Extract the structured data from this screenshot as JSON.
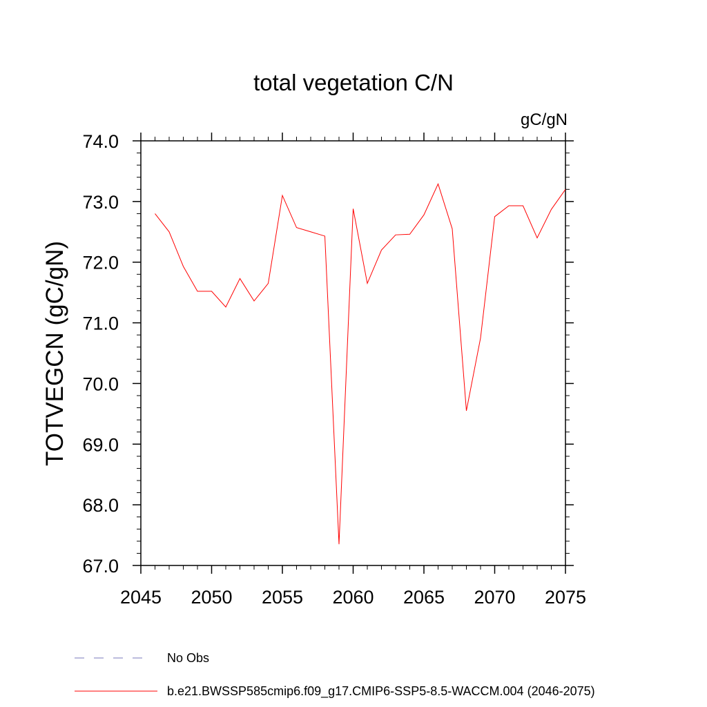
{
  "chart_data": {
    "type": "line",
    "title": "total vegetation C/N",
    "units_label": "gC/gN",
    "ylabel": "TOTVEGCN  (gC/gN)",
    "xlabel": "",
    "xlim": [
      2045,
      2075
    ],
    "ylim": [
      67.0,
      74.0
    ],
    "x_ticks": [
      2045,
      2050,
      2055,
      2060,
      2065,
      2070,
      2075
    ],
    "x_tick_labels": [
      "2045",
      "2050",
      "2055",
      "2060",
      "2065",
      "2070",
      "2075"
    ],
    "y_ticks": [
      67.0,
      68.0,
      69.0,
      70.0,
      71.0,
      72.0,
      73.0,
      74.0
    ],
    "y_tick_labels": [
      "67.0",
      "68.0",
      "69.0",
      "70.0",
      "71.0",
      "72.0",
      "73.0",
      "74.0"
    ],
    "grid": false,
    "legend_position": "bottom",
    "series": [
      {
        "name": "b.e21.BWSSP585cmip6.f09_g17.CMIP6-SSP5-8.5-WACCM.004 (2046-2075)",
        "color": "#ff0000",
        "x": [
          2046,
          2047,
          2048,
          2049,
          2050,
          2051,
          2052,
          2053,
          2054,
          2055,
          2056,
          2057,
          2058,
          2059,
          2060,
          2061,
          2062,
          2063,
          2064,
          2065,
          2066,
          2067,
          2068,
          2069,
          2070,
          2071,
          2072,
          2073,
          2074,
          2075
        ],
        "values": [
          72.8,
          72.5,
          71.93,
          71.52,
          71.52,
          71.26,
          71.73,
          71.36,
          71.65,
          73.1,
          72.57,
          72.5,
          72.43,
          67.35,
          72.88,
          71.65,
          72.2,
          72.45,
          72.46,
          72.78,
          73.29,
          72.55,
          69.55,
          70.75,
          72.75,
          72.93,
          72.93,
          72.4,
          72.87,
          73.2
        ]
      }
    ],
    "legend": [
      {
        "label": "No Obs",
        "color": "#7777bb",
        "style": "dashed"
      },
      {
        "label": "b.e21.BWSSP585cmip6.f09_g17.CMIP6-SSP5-8.5-WACCM.004 (2046-2075)",
        "color": "#ff0000",
        "style": "solid"
      }
    ]
  }
}
